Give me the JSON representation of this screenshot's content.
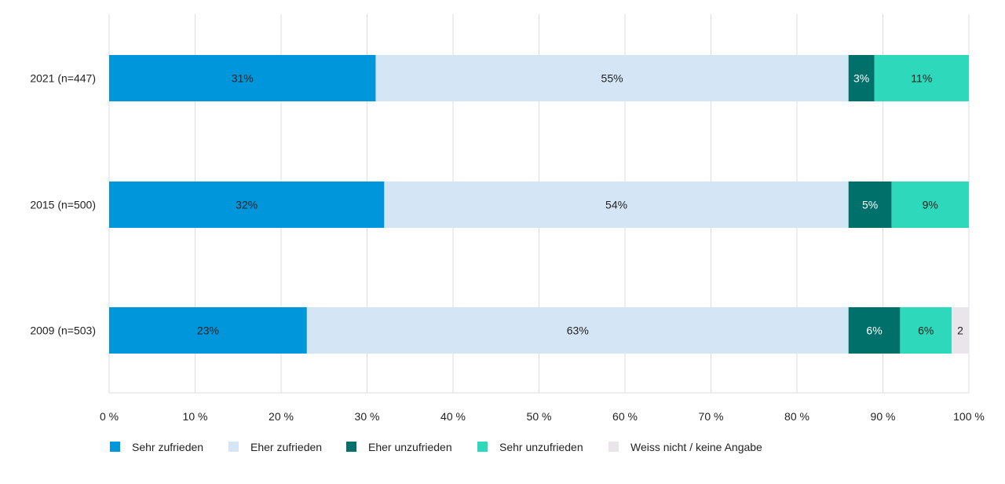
{
  "chart_data": {
    "type": "bar",
    "orientation": "horizontal",
    "stacked": true,
    "categories": [
      "2021 (n=447)",
      "2015 (n=500)",
      "2009 (n=503)"
    ],
    "series": [
      {
        "name": "Sehr zufrieden",
        "color": "#0096DC",
        "values": [
          31,
          32,
          23
        ],
        "labels": [
          "31%",
          "32%",
          "23%"
        ]
      },
      {
        "name": "Eher zufrieden",
        "color": "#D4E6F6",
        "values": [
          55,
          54,
          63
        ],
        "labels": [
          "55%",
          "54%",
          "63%"
        ]
      },
      {
        "name": "Eher unzufrieden",
        "color": "#00706B",
        "values": [
          3,
          5,
          6
        ],
        "labels": [
          "3%",
          "5%",
          "6%"
        ]
      },
      {
        "name": "Sehr unzufrieden",
        "color": "#2ED8BA",
        "values": [
          11,
          9,
          6
        ],
        "labels": [
          "11%",
          "9%",
          "6%"
        ]
      },
      {
        "name": "Weiss nicht / keine Angabe",
        "color": "#E9E5EA",
        "values": [
          0,
          0,
          2
        ],
        "labels": [
          "",
          "",
          "2"
        ]
      }
    ],
    "xlim": [
      0,
      100
    ],
    "xticks": [
      0,
      10,
      20,
      30,
      40,
      50,
      60,
      70,
      80,
      90,
      100
    ],
    "xtick_labels": [
      "0 %",
      "10 %",
      "20 %",
      "30 %",
      "40 %",
      "50 %",
      "60 %",
      "70 %",
      "80 %",
      "90 %",
      "100 %"
    ],
    "grid": "vertical",
    "legend": "bottom",
    "colors": {
      "grid": "#DDDDDD",
      "text": "#222222",
      "label_light": "#ffffff"
    }
  }
}
